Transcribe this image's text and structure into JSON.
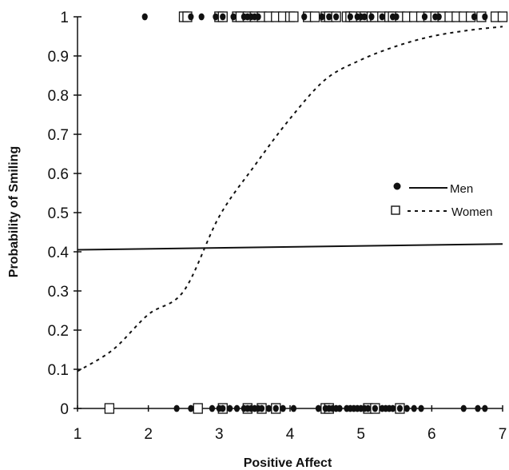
{
  "chart_data": {
    "type": "scatter",
    "xlabel": "Positive Affect",
    "ylabel": "Probability of Smiling",
    "xlim": [
      1,
      7
    ],
    "ylim": [
      0,
      1
    ],
    "x_ticks": [
      "1",
      "2",
      "3",
      "4",
      "5",
      "6",
      "7"
    ],
    "y_ticks": [
      "0",
      "0.1",
      "0.2",
      "0.3",
      "0.4",
      "0.5",
      "0.6",
      "0.7",
      "0.8",
      "0.9",
      "1"
    ],
    "legend": {
      "position": "right",
      "entries": [
        "Men",
        "Women"
      ]
    },
    "series": [
      {
        "name": "Men",
        "marker": "filled-circle",
        "color": "#111111",
        "points_y1": [
          1.95,
          2.6,
          2.75,
          2.95,
          3.05,
          3.2,
          3.35,
          3.4,
          3.45,
          3.5,
          3.55,
          4.2,
          4.45,
          4.55,
          4.65,
          4.85,
          4.95,
          5.0,
          5.05,
          5.15,
          5.3,
          5.45,
          5.5,
          5.9,
          6.05,
          6.1,
          6.6,
          6.75
        ],
        "points_y0": [
          2.4,
          2.6,
          2.9,
          3.0,
          3.05,
          3.15,
          3.25,
          3.35,
          3.4,
          3.45,
          3.5,
          3.55,
          3.6,
          3.7,
          3.8,
          3.9,
          4.05,
          4.4,
          4.5,
          4.55,
          4.6,
          4.65,
          4.7,
          4.8,
          4.85,
          4.9,
          4.95,
          5.0,
          5.05,
          5.1,
          5.2,
          5.3,
          5.35,
          5.4,
          5.45,
          5.55,
          5.65,
          5.75,
          5.85,
          6.45,
          6.65,
          6.75
        ],
        "fit_line": {
          "x": [
            1,
            7
          ],
          "y": [
            0.405,
            0.42
          ]
        }
      },
      {
        "name": "Women",
        "marker": "open-square",
        "color": "#111111",
        "points_y1": [
          2.5,
          2.55,
          3.0,
          3.05,
          3.25,
          3.3,
          3.4,
          3.5,
          3.6,
          3.7,
          3.8,
          3.9,
          4.0,
          4.05,
          4.25,
          4.35,
          4.5,
          4.55,
          4.65,
          4.8,
          4.85,
          4.9,
          5.0,
          5.05,
          5.15,
          5.2,
          5.3,
          5.4,
          5.45,
          5.55,
          5.65,
          5.75,
          5.85,
          5.95,
          6.05,
          6.15,
          6.25,
          6.35,
          6.45,
          6.55,
          6.7,
          6.9,
          7.0
        ],
        "points_y0": [
          1.45,
          2.7,
          3.05,
          3.4,
          3.6,
          3.8,
          4.5,
          4.55,
          5.1,
          5.2,
          5.55
        ],
        "fit_curve": {
          "x": [
            1.0,
            1.5,
            2.0,
            2.5,
            3.0,
            3.5,
            4.0,
            4.5,
            5.0,
            5.5,
            6.0,
            6.5,
            7.0
          ],
          "y": [
            0.095,
            0.15,
            0.24,
            0.3,
            0.49,
            0.62,
            0.74,
            0.84,
            0.89,
            0.925,
            0.95,
            0.965,
            0.975
          ]
        }
      }
    ]
  }
}
